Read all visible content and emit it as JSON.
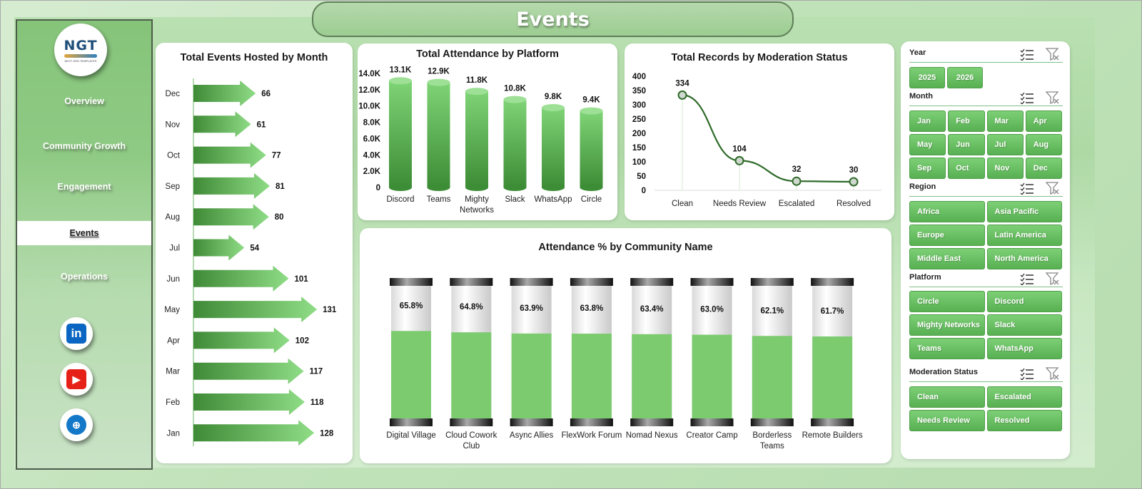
{
  "page": {
    "title": "Events"
  },
  "logo": {
    "text": "NGT",
    "tagline": "NEXT GEN TEMPLATES"
  },
  "sidebar": {
    "items": [
      {
        "label": "Overview",
        "active": false
      },
      {
        "label": "Community Growth",
        "active": false
      },
      {
        "label": "Engagement",
        "active": false
      },
      {
        "label": "Events",
        "active": true
      },
      {
        "label": "Operations",
        "active": false
      }
    ],
    "social": [
      {
        "name": "linkedin-icon",
        "glyph": "in",
        "color": "#0a66c2"
      },
      {
        "name": "youtube-icon",
        "glyph": "▶",
        "color": "#e62117"
      },
      {
        "name": "globe-icon",
        "glyph": "⊕",
        "color": "#1478c8"
      }
    ]
  },
  "charts": {
    "monthly": {
      "title": "Total Events Hosted by Month",
      "chart_data": {
        "type": "bar",
        "orientation": "horizontal",
        "title": "Total Events Hosted by Month",
        "categories": [
          "Dec",
          "Nov",
          "Oct",
          "Sep",
          "Aug",
          "Jul",
          "Jun",
          "May",
          "Apr",
          "Mar",
          "Feb",
          "Jan"
        ],
        "values": [
          66,
          61,
          77,
          81,
          80,
          54,
          101,
          131,
          102,
          117,
          118,
          128
        ],
        "data_labels": [
          "66",
          "61",
          "77",
          "81",
          "80",
          "54",
          "101",
          "131",
          "102",
          "117",
          "118",
          "128"
        ],
        "xlim": [
          0,
          140
        ],
        "grid": false
      }
    },
    "platform": {
      "title": "Total Attendance by Platform",
      "chart_data": {
        "type": "bar",
        "title": "Total Attendance by Platform",
        "categories": [
          "Discord",
          "Teams",
          "Mighty Networks",
          "Slack",
          "WhatsApp",
          "Circle"
        ],
        "category_lines": [
          [
            "Discord"
          ],
          [
            "Teams"
          ],
          [
            "Mighty",
            "Networks"
          ],
          [
            "Slack"
          ],
          [
            "WhatsApp"
          ],
          [
            "Circle"
          ]
        ],
        "values": [
          13100,
          12900,
          11800,
          10800,
          9800,
          9400
        ],
        "data_labels": [
          "13.1K",
          "12.9K",
          "11.8K",
          "10.8K",
          "9.8K",
          "9.4K"
        ],
        "yticks": [
          0,
          2000,
          4000,
          6000,
          8000,
          10000,
          12000,
          14000
        ],
        "ytick_labels": [
          "0",
          "2.0K",
          "4.0K",
          "6.0K",
          "8.0K",
          "10.0K",
          "12.0K",
          "14.0K"
        ],
        "ylim": [
          0,
          14000
        ],
        "grid": false
      }
    },
    "moderation": {
      "title": "Total Records by Moderation Status",
      "chart_data": {
        "type": "line",
        "title": "Total Records by Moderation Status",
        "categories": [
          "Clean",
          "Needs Review",
          "Escalated",
          "Resolved"
        ],
        "values": [
          334,
          104,
          32,
          30
        ],
        "data_labels": [
          "334",
          "104",
          "32",
          "30"
        ],
        "yticks": [
          0,
          50,
          100,
          150,
          200,
          250,
          300,
          350,
          400
        ],
        "ylim": [
          0,
          400
        ],
        "grid": false
      }
    },
    "community": {
      "title": "Attendance % by Community Name",
      "chart_data": {
        "type": "bar",
        "title": "Attendance % by Community Name",
        "categories": [
          "Digital Village",
          "Cloud Cowork Club",
          "Async Allies",
          "FlexWork Forum",
          "Nomad Nexus",
          "Creator Camp",
          "Borderless Teams",
          "Remote Builders"
        ],
        "category_lines": [
          [
            "Digital Village"
          ],
          [
            "Cloud Cowork",
            "Club"
          ],
          [
            "Async Allies"
          ],
          [
            "FlexWork Forum"
          ],
          [
            "Nomad Nexus"
          ],
          [
            "Creator Camp"
          ],
          [
            "Borderless",
            "Teams"
          ],
          [
            "Remote Builders"
          ]
        ],
        "values": [
          65.8,
          64.8,
          63.9,
          63.8,
          63.4,
          63.0,
          62.1,
          61.7
        ],
        "data_labels": [
          "65.8%",
          "64.8%",
          "63.9%",
          "63.8%",
          "63.4%",
          "63.0%",
          "62.1%",
          "61.7%"
        ],
        "ylim": [
          0,
          100
        ],
        "grid": false
      }
    }
  },
  "slicers": [
    {
      "title": "Year",
      "cols": 2,
      "narrow": true,
      "items": [
        "2025",
        "2026"
      ]
    },
    {
      "title": "Month",
      "cols": 4,
      "narrow": false,
      "items": [
        "Jan",
        "Feb",
        "Mar",
        "Apr",
        "May",
        "Jun",
        "Jul",
        "Aug",
        "Sep",
        "Oct",
        "Nov",
        "Dec"
      ]
    },
    {
      "title": "Region",
      "cols": 2,
      "narrow": false,
      "items": [
        "Africa",
        "Asia Pacific",
        "Europe",
        "Latin America",
        "Middle East",
        "North America"
      ]
    },
    {
      "title": "Platform",
      "cols": 2,
      "narrow": false,
      "items": [
        "Circle",
        "Discord",
        "Mighty Networks",
        "Slack",
        "Teams",
        "WhatsApp"
      ]
    },
    {
      "title": "Moderation Status",
      "cols": 2,
      "narrow": false,
      "items": [
        "Clean",
        "Escalated",
        "Needs Review",
        "Resolved"
      ]
    }
  ],
  "colors": {
    "accent": "#5cb85c",
    "dark": "#3a8a34",
    "light": "#8fd98a",
    "sidebar": "#86c47a"
  }
}
